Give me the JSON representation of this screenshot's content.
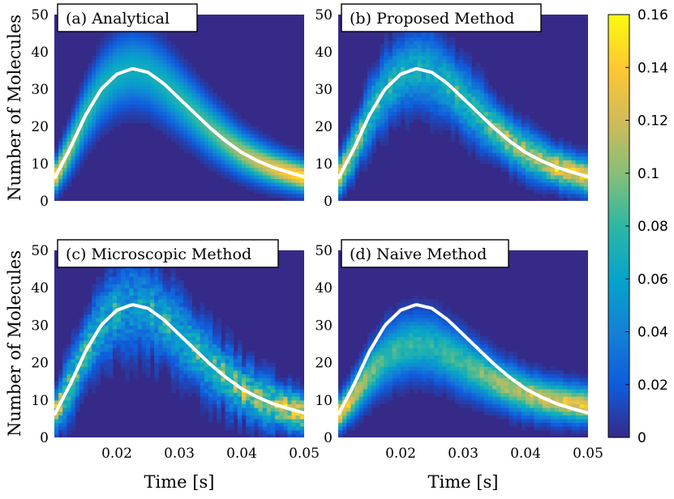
{
  "figure": {
    "ylabel": "Number of Molecules",
    "xlabel": "Time [s]"
  },
  "chart_data": [
    {
      "type": "heatmap",
      "title": "(a) Analytical",
      "xlim": [
        0.01,
        0.05
      ],
      "ylim": [
        0,
        50
      ],
      "xticks": [
        "0.02",
        "0.03",
        "0.04",
        "0.05"
      ],
      "yticks": [
        "0",
        "10",
        "20",
        "30",
        "40",
        "50"
      ],
      "ylabel": "Number of Molecules",
      "xlabel": "",
      "distribution": {
        "peak_time": 0.0225,
        "peak_mean": 35,
        "spread_scale": 1.0,
        "bias": 0,
        "noise": 0
      },
      "white_curve": {
        "x": [
          0.01,
          0.0125,
          0.015,
          0.0175,
          0.02,
          0.0225,
          0.025,
          0.0275,
          0.03,
          0.0325,
          0.035,
          0.0375,
          0.04,
          0.0425,
          0.045,
          0.0475,
          0.05
        ],
        "y": [
          6,
          14,
          23,
          30,
          34,
          35.5,
          34.5,
          31.5,
          27.5,
          23.5,
          19.5,
          16,
          13,
          10.8,
          9,
          7.7,
          6.5
        ]
      }
    },
    {
      "type": "heatmap",
      "title": "(b) Proposed Method",
      "xlim": [
        0.01,
        0.05
      ],
      "ylim": [
        0,
        50
      ],
      "xticks": [
        "0.02",
        "0.03",
        "0.04",
        "0.05"
      ],
      "yticks": [
        "0",
        "10",
        "20",
        "30",
        "40",
        "50"
      ],
      "ylabel": "",
      "xlabel": "",
      "distribution": {
        "peak_time": 0.0225,
        "peak_mean": 35,
        "spread_scale": 1.0,
        "bias": 0,
        "noise": 0.35
      },
      "white_curve": {
        "x": [
          0.01,
          0.0125,
          0.015,
          0.0175,
          0.02,
          0.0225,
          0.025,
          0.0275,
          0.03,
          0.0325,
          0.035,
          0.0375,
          0.04,
          0.0425,
          0.045,
          0.0475,
          0.05
        ],
        "y": [
          6,
          14,
          23,
          30,
          34,
          35.5,
          34.5,
          31.5,
          27.5,
          23.5,
          19.5,
          16,
          13,
          10.8,
          9,
          7.7,
          6.5
        ]
      }
    },
    {
      "type": "heatmap",
      "title": "(c) Microscopic Method",
      "xlim": [
        0.01,
        0.05
      ],
      "ylim": [
        0,
        50
      ],
      "xticks": [
        "0.02",
        "0.03",
        "0.04",
        "0.05"
      ],
      "yticks": [
        "0",
        "10",
        "20",
        "30",
        "40",
        "50"
      ],
      "ylabel": "Number of Molecules",
      "xlabel": "Time [s]",
      "distribution": {
        "peak_time": 0.0225,
        "peak_mean": 35,
        "spread_scale": 1.15,
        "bias": 0,
        "noise": 0.6
      },
      "white_curve": {
        "x": [
          0.01,
          0.0125,
          0.015,
          0.0175,
          0.02,
          0.0225,
          0.025,
          0.0275,
          0.03,
          0.0325,
          0.035,
          0.0375,
          0.04,
          0.0425,
          0.045,
          0.0475,
          0.05
        ],
        "y": [
          6,
          14,
          23,
          30,
          34,
          35.5,
          34.5,
          31.5,
          27.5,
          23.5,
          19.5,
          16,
          13,
          10.8,
          9,
          7.7,
          6.5
        ]
      }
    },
    {
      "type": "heatmap",
      "title": "(d) Naive Method",
      "xlim": [
        0.01,
        0.05
      ],
      "ylim": [
        0,
        50
      ],
      "xticks": [
        "0.02",
        "0.03",
        "0.04",
        "0.05"
      ],
      "yticks": [
        "0",
        "10",
        "20",
        "30",
        "40",
        "50"
      ],
      "ylabel": "",
      "xlabel": "Time [s]",
      "distribution": {
        "peak_time": 0.025,
        "peak_mean": 25,
        "spread_scale": 1.0,
        "bias": 1,
        "noise": 0.2
      },
      "white_curve": {
        "x": [
          0.01,
          0.0125,
          0.015,
          0.0175,
          0.02,
          0.0225,
          0.025,
          0.0275,
          0.03,
          0.0325,
          0.035,
          0.0375,
          0.04,
          0.0425,
          0.045,
          0.0475,
          0.05
        ],
        "y": [
          6,
          14,
          23,
          30,
          34,
          35.5,
          34.5,
          31.5,
          27.5,
          23.5,
          19.5,
          16,
          13,
          10.8,
          9,
          7.7,
          6.5
        ]
      }
    }
  ],
  "colorbar": {
    "colormap": "parula",
    "range": [
      0,
      0.16
    ],
    "ticks": [
      "0",
      "0.02",
      "0.04",
      "0.06",
      "0.08",
      "0.1",
      "0.12",
      "0.14",
      "0.16"
    ],
    "tick_values": [
      0,
      0.02,
      0.04,
      0.06,
      0.08,
      0.1,
      0.12,
      0.14,
      0.16
    ]
  },
  "colors": {
    "background": "#352A87",
    "curve": "#ffffff",
    "parula": [
      "#352A87",
      "#0F5CDD",
      "#1481D6",
      "#06A4CA",
      "#2EB7A4",
      "#87BF77",
      "#D1BB59",
      "#FEC832",
      "#F9FB0E"
    ]
  }
}
